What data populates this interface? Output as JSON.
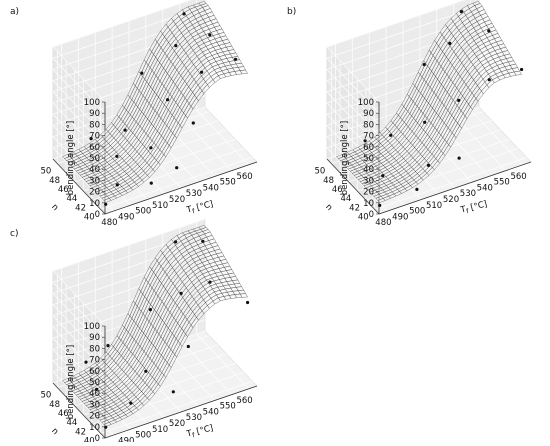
{
  "chart_data": [
    {
      "type": "surface",
      "panel_label": "a)",
      "zlabel": "bending angle [°]",
      "xlabel": "T$_f$ [°C]",
      "xlabel_text": "T",
      "xlabel_sub": "f",
      "xlabel_unit": " [°C]",
      "ylabel": "n",
      "xlim": [
        475,
        565
      ],
      "ylim": [
        39,
        51
      ],
      "zlim": [
        0,
        100
      ],
      "xticks": [
        480,
        490,
        500,
        510,
        520,
        530,
        540,
        550,
        560
      ],
      "yticks": [
        40,
        42,
        44,
        46,
        48,
        50
      ],
      "zticks": [
        0,
        10,
        20,
        30,
        40,
        50,
        60,
        70,
        80,
        90,
        100
      ],
      "points": [
        {
          "x": 478,
          "y": 40,
          "z": 3
        },
        {
          "x": 490,
          "y": 42,
          "z": 6
        },
        {
          "x": 500,
          "y": 46,
          "z": 10
        },
        {
          "x": 505,
          "y": 40,
          "z": 8
        },
        {
          "x": 510,
          "y": 48,
          "z": 20
        },
        {
          "x": 515,
          "y": 44,
          "z": 18
        },
        {
          "x": 520,
          "y": 40,
          "z": 14
        },
        {
          "x": 525,
          "y": 50,
          "z": 55
        },
        {
          "x": 530,
          "y": 46,
          "z": 45
        },
        {
          "x": 535,
          "y": 42,
          "z": 38
        },
        {
          "x": 540,
          "y": 48,
          "z": 80
        },
        {
          "x": 545,
          "y": 44,
          "z": 70
        },
        {
          "x": 550,
          "y": 50,
          "z": 95
        },
        {
          "x": 555,
          "y": 46,
          "z": 90
        },
        {
          "x": 560,
          "y": 42,
          "z": 82
        },
        {
          "x": 495,
          "y": 50,
          "z": 12
        }
      ]
    },
    {
      "type": "surface",
      "panel_label": "b)",
      "zlabel": "bending angle [°]",
      "xlabel": "T$_f$ [°C]",
      "xlabel_text": "T",
      "xlabel_sub": "f",
      "xlabel_unit": " [°C]",
      "ylabel": "n",
      "xlim": [
        475,
        565
      ],
      "ylim": [
        39,
        51
      ],
      "zlim": [
        0,
        100
      ],
      "xticks": [
        480,
        490,
        500,
        510,
        520,
        530,
        540,
        550,
        560
      ],
      "yticks": [
        40,
        42,
        44,
        46,
        48,
        50
      ],
      "zticks": [
        0,
        10,
        20,
        30,
        40,
        50,
        60,
        70,
        80,
        90,
        100
      ],
      "points": [
        {
          "x": 478,
          "y": 40,
          "z": 2
        },
        {
          "x": 490,
          "y": 44,
          "z": 6
        },
        {
          "x": 500,
          "y": 40,
          "z": 5
        },
        {
          "x": 505,
          "y": 48,
          "z": 18
        },
        {
          "x": 512,
          "y": 42,
          "z": 12
        },
        {
          "x": 520,
          "y": 46,
          "z": 30
        },
        {
          "x": 525,
          "y": 40,
          "z": 20
        },
        {
          "x": 530,
          "y": 50,
          "z": 60
        },
        {
          "x": 535,
          "y": 44,
          "z": 50
        },
        {
          "x": 540,
          "y": 48,
          "z": 82
        },
        {
          "x": 548,
          "y": 42,
          "z": 70
        },
        {
          "x": 552,
          "y": 50,
          "z": 96
        },
        {
          "x": 558,
          "y": 46,
          "z": 92
        },
        {
          "x": 562,
          "y": 40,
          "z": 80
        },
        {
          "x": 495,
          "y": 50,
          "z": 10
        }
      ]
    },
    {
      "type": "surface",
      "panel_label": "c)",
      "zlabel": "bending angle [°]",
      "xlabel": "T$_f$ [°C]",
      "xlabel_text": "T",
      "xlabel_sub": "f",
      "xlabel_unit": " [°C]",
      "ylabel": "n",
      "xlim": [
        475,
        565
      ],
      "ylim": [
        39,
        51
      ],
      "zlim": [
        0,
        100
      ],
      "xticks": [
        480,
        490,
        500,
        510,
        520,
        530,
        540,
        550,
        560
      ],
      "yticks": [
        40,
        42,
        44,
        46,
        48,
        50
      ],
      "zticks": [
        0,
        10,
        20,
        30,
        40,
        50,
        60,
        70,
        80,
        90,
        100
      ],
      "points": [
        {
          "x": 478,
          "y": 40,
          "z": 4
        },
        {
          "x": 488,
          "y": 46,
          "z": 8
        },
        {
          "x": 498,
          "y": 42,
          "z": 7
        },
        {
          "x": 505,
          "y": 50,
          "z": 22
        },
        {
          "x": 512,
          "y": 44,
          "z": 20
        },
        {
          "x": 518,
          "y": 40,
          "z": 15
        },
        {
          "x": 525,
          "y": 48,
          "z": 52
        },
        {
          "x": 532,
          "y": 42,
          "z": 40
        },
        {
          "x": 538,
          "y": 46,
          "z": 68
        },
        {
          "x": 545,
          "y": 50,
          "z": 94
        },
        {
          "x": 550,
          "y": 44,
          "z": 80
        },
        {
          "x": 556,
          "y": 48,
          "z": 97
        },
        {
          "x": 562,
          "y": 40,
          "z": 72
        },
        {
          "x": 492,
          "y": 50,
          "z": 14
        }
      ]
    }
  ]
}
